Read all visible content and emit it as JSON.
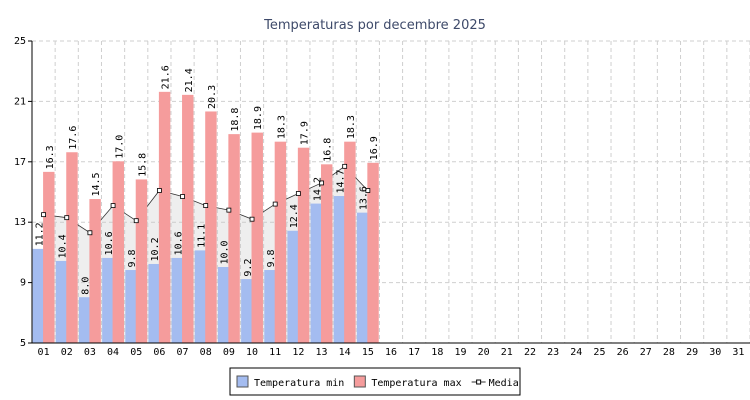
{
  "chart_data": {
    "type": "bar",
    "title": "Temperaturas por decembre 2025",
    "categories": [
      "01",
      "02",
      "03",
      "04",
      "05",
      "06",
      "07",
      "08",
      "09",
      "10",
      "11",
      "12",
      "13",
      "14",
      "15",
      "16",
      "17",
      "18",
      "19",
      "20",
      "21",
      "22",
      "23",
      "24",
      "25",
      "26",
      "27",
      "28",
      "29",
      "30",
      "31"
    ],
    "series": [
      {
        "name": "Temperatura min",
        "color": "#a4bcf0",
        "values": [
          11.2,
          10.4,
          8.0,
          10.6,
          9.8,
          10.2,
          10.6,
          11.1,
          10.0,
          9.2,
          9.8,
          12.4,
          14.2,
          14.7,
          13.6,
          null,
          null,
          null,
          null,
          null,
          null,
          null,
          null,
          null,
          null,
          null,
          null,
          null,
          null,
          null,
          null
        ],
        "value_labels": [
          "11.2",
          "10.4",
          "8.0",
          "10.6",
          "9.8",
          "10.2",
          "10.6",
          "11.1",
          "10.0",
          "9.2",
          "9.8",
          "12.4",
          "14.2",
          "14.7",
          "13.6",
          null,
          null,
          null,
          null,
          null,
          null,
          null,
          null,
          null,
          null,
          null,
          null,
          null,
          null,
          null,
          null
        ]
      },
      {
        "name": "Temperatura max",
        "color": "#f59c9c",
        "values": [
          16.3,
          17.6,
          14.5,
          17.0,
          15.8,
          21.6,
          21.4,
          20.3,
          18.8,
          18.9,
          18.3,
          17.9,
          16.8,
          18.3,
          16.9,
          null,
          null,
          null,
          null,
          null,
          null,
          null,
          null,
          null,
          null,
          null,
          null,
          null,
          null,
          null,
          null
        ],
        "value_labels": [
          "16.3",
          "17.6",
          "14.5",
          "17.0",
          "15.8",
          "21.6",
          "21.4",
          "20.3",
          "18.8",
          "18.9",
          "18.3",
          "17.9",
          "16.8",
          "18.3",
          "16.9",
          null,
          null,
          null,
          null,
          null,
          null,
          null,
          null,
          null,
          null,
          null,
          null,
          null,
          null,
          null,
          null
        ]
      },
      {
        "name": "Media",
        "color": "#333333",
        "type": "line",
        "values": [
          13.5,
          13.3,
          12.3,
          14.1,
          13.1,
          15.1,
          14.7,
          14.1,
          13.8,
          13.2,
          14.2,
          14.9,
          15.6,
          16.7,
          15.1,
          null,
          null,
          null,
          null,
          null,
          null,
          null,
          null,
          null,
          null,
          null,
          null,
          null,
          null,
          null,
          null
        ]
      }
    ],
    "ylim": [
      5,
      25
    ],
    "yticks": [
      5,
      9,
      13,
      17,
      21,
      25
    ],
    "grid": true,
    "legend": "bottom"
  }
}
